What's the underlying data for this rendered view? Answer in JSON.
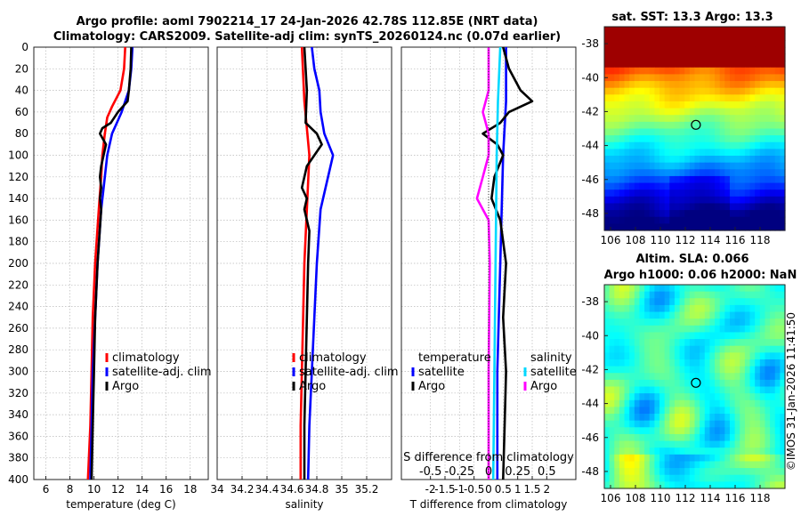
{
  "figure": {
    "title_line1": "Argo profile: aoml 7902214_17 24-Jan-2026 42.78S 112.85E (NRT data)",
    "title_line2": "Climatology: CARS2009. Satellite-adj clim: synTS_20260124.nc (0.07d earlier)",
    "credit": "©IMOS 31-Jan-2026 11:41:50"
  },
  "colors": {
    "climatology": "#ff0000",
    "satellite": "#0000ff",
    "argo": "#000000",
    "temp_diff_satellite": "#00d8ff",
    "sal_diff_argo": "#ff00ff"
  },
  "chart_data": [
    {
      "type": "line",
      "id": "temperature",
      "title": "",
      "xlabel": "temperature (deg C)",
      "ylabel": "",
      "xlim": [
        5,
        19.5
      ],
      "ylim": [
        400,
        0
      ],
      "xticks": [
        "6",
        "8",
        "10",
        "12",
        "14",
        "16",
        "18"
      ],
      "xtick_values": [
        6,
        8,
        10,
        12,
        14,
        16,
        18
      ],
      "yticks": [
        "0",
        "20",
        "40",
        "60",
        "80",
        "100",
        "120",
        "140",
        "160",
        "180",
        "200",
        "220",
        "240",
        "260",
        "280",
        "300",
        "320",
        "340",
        "360",
        "380",
        "400"
      ],
      "ytick_values": [
        0,
        20,
        40,
        60,
        80,
        100,
        120,
        140,
        160,
        180,
        200,
        220,
        240,
        260,
        280,
        300,
        320,
        340,
        360,
        380,
        400
      ],
      "legend_labels": [
        "climatology",
        "satellite-adj. clim",
        "Argo"
      ],
      "series": [
        {
          "name": "climatology",
          "color": "#ff0000",
          "depth": [
            0,
            20,
            40,
            55,
            65,
            80,
            100,
            120,
            150,
            200,
            250,
            300,
            350,
            400
          ],
          "values": [
            12.6,
            12.5,
            12.2,
            11.5,
            11.1,
            10.9,
            10.7,
            10.6,
            10.4,
            10.1,
            9.9,
            9.8,
            9.7,
            9.5
          ]
        },
        {
          "name": "satellite-adj. clim",
          "color": "#0000ff",
          "depth": [
            0,
            20,
            40,
            50,
            60,
            70,
            80,
            100,
            120,
            150,
            200,
            250,
            300,
            350,
            400
          ],
          "values": [
            13.2,
            13.1,
            12.9,
            12.6,
            12.3,
            11.9,
            11.5,
            11.1,
            10.9,
            10.6,
            10.3,
            10.1,
            9.9,
            9.8,
            9.7
          ]
        },
        {
          "name": "Argo",
          "color": "#000000",
          "depth": [
            0,
            20,
            40,
            50,
            60,
            70,
            75,
            80,
            90,
            100,
            110,
            120,
            130,
            140,
            150,
            200,
            250,
            300,
            350,
            400
          ],
          "values": [
            13.1,
            13.05,
            12.9,
            12.8,
            12.0,
            11.4,
            10.7,
            10.5,
            11.0,
            10.8,
            10.6,
            10.5,
            10.6,
            10.5,
            10.6,
            10.3,
            10.1,
            10.0,
            9.9,
            9.8
          ]
        }
      ]
    },
    {
      "type": "line",
      "id": "salinity",
      "title": "",
      "xlabel": "salinity",
      "ylabel": "",
      "xlim": [
        34,
        35.4
      ],
      "ylim": [
        400,
        0
      ],
      "xticks": [
        "34",
        "34.2",
        "34.4",
        "34.6",
        "34.8",
        "35",
        "35.2"
      ],
      "xtick_values": [
        34,
        34.2,
        34.4,
        34.6,
        34.8,
        35,
        35.2
      ],
      "legend_labels": [
        "climatology",
        "satellite-adj. clim",
        "Argo"
      ],
      "series": [
        {
          "name": "climatology",
          "color": "#ff0000",
          "depth": [
            0,
            50,
            100,
            150,
            200,
            250,
            300,
            350,
            400
          ],
          "values": [
            34.68,
            34.7,
            34.74,
            34.72,
            34.7,
            34.69,
            34.68,
            34.67,
            34.67
          ]
        },
        {
          "name": "satellite-adj. clim",
          "color": "#0000ff",
          "depth": [
            0,
            20,
            40,
            60,
            80,
            100,
            120,
            150,
            200,
            250,
            300,
            350,
            400
          ],
          "values": [
            34.76,
            34.78,
            34.82,
            34.83,
            34.86,
            34.93,
            34.89,
            34.83,
            34.8,
            34.78,
            34.76,
            34.74,
            34.73
          ]
        },
        {
          "name": "Argo",
          "color": "#000000",
          "depth": [
            0,
            40,
            70,
            80,
            90,
            110,
            130,
            140,
            150,
            170,
            200,
            250,
            300,
            350,
            400
          ],
          "values": [
            34.7,
            34.72,
            34.71,
            34.8,
            34.84,
            34.72,
            34.68,
            34.72,
            34.7,
            34.74,
            34.73,
            34.72,
            34.71,
            34.7,
            34.7
          ]
        }
      ]
    },
    {
      "type": "line",
      "id": "differences",
      "title": "",
      "xlabel": "T difference from climatology",
      "xlabel_top": "S difference from climatology",
      "xlim": [
        -3,
        3
      ],
      "ylim": [
        400,
        0
      ],
      "xticks": [
        "-2",
        "-1.5",
        "-1",
        "-0.5",
        "0",
        "0.5",
        "1",
        "1.5",
        "2"
      ],
      "xtick_values": [
        -2,
        -1.5,
        -1,
        -0.5,
        0,
        0.5,
        1,
        1.5,
        2
      ],
      "s_ticks": [
        "-0.5",
        "-0.25",
        "0",
        "0.25",
        "0.5"
      ],
      "s_tick_values": [
        -0.5,
        -0.25,
        0,
        0.25,
        0.5
      ],
      "legend_left": {
        "header": "temperature",
        "items": [
          "satellite",
          "Argo"
        ]
      },
      "legend_right": {
        "header": "salinity",
        "items": [
          "satellite",
          "Argo"
        ]
      },
      "series": [
        {
          "name": "temperature satellite",
          "color": "#0000ff",
          "depth": [
            0,
            50,
            100,
            200,
            300,
            400
          ],
          "values": [
            0.6,
            0.6,
            0.5,
            0.4,
            0.3,
            0.3
          ]
        },
        {
          "name": "temperature Argo",
          "color": "#000000",
          "depth": [
            0,
            20,
            40,
            50,
            60,
            70,
            80,
            90,
            100,
            120,
            140,
            160,
            200,
            250,
            300,
            350,
            400
          ],
          "values": [
            0.5,
            0.7,
            1.1,
            1.5,
            0.7,
            0.4,
            -0.2,
            0.3,
            0.5,
            0.2,
            0.1,
            0.4,
            0.6,
            0.5,
            0.6,
            0.55,
            0.5
          ]
        },
        {
          "name": "salinity satellite",
          "color": "#00d8ff",
          "depth": [
            0,
            50,
            100,
            200,
            300,
            400
          ],
          "values": [
            0.1,
            0.08,
            0.07,
            0.06,
            0.05,
            0.04
          ]
        },
        {
          "name": "salinity Argo",
          "color": "#ff00ff",
          "depth": [
            0,
            40,
            60,
            80,
            100,
            120,
            140,
            160,
            200,
            300,
            400
          ],
          "values": [
            0.0,
            0.0,
            -0.05,
            0.0,
            0.0,
            -0.05,
            -0.1,
            0.0,
            0.01,
            0.0,
            0.0
          ]
        }
      ]
    },
    {
      "type": "heatmap",
      "id": "sst_map",
      "title": "sat. SST: 13.3 Argo: 13.3",
      "xlim": [
        105.5,
        120
      ],
      "ylim": [
        -49,
        -37
      ],
      "xticks": [
        "106",
        "108",
        "110",
        "112",
        "114",
        "116",
        "118"
      ],
      "xtick_values": [
        106,
        108,
        110,
        112,
        114,
        116,
        118
      ],
      "yticks": [
        "-38",
        "-40",
        "-42",
        "-44",
        "-46",
        "-48"
      ],
      "ytick_values": [
        -38,
        -40,
        -42,
        -44,
        -46,
        -48
      ],
      "marker": {
        "lon": 112.85,
        "lat": -42.78
      }
    },
    {
      "type": "heatmap",
      "id": "sla_map",
      "title": "Altim. SLA: 0.066",
      "subtitle": "Argo h1000: 0.06 h2000: NaN",
      "xlim": [
        105.5,
        120
      ],
      "ylim": [
        -49,
        -37
      ],
      "xticks": [
        "106",
        "108",
        "110",
        "112",
        "114",
        "116",
        "118"
      ],
      "xtick_values": [
        106,
        108,
        110,
        112,
        114,
        116,
        118
      ],
      "yticks": [
        "-38",
        "-40",
        "-42",
        "-44",
        "-46",
        "-48"
      ],
      "ytick_values": [
        -38,
        -40,
        -42,
        -44,
        -46,
        -48
      ],
      "marker": {
        "lon": 112.85,
        "lat": -42.78
      }
    }
  ]
}
